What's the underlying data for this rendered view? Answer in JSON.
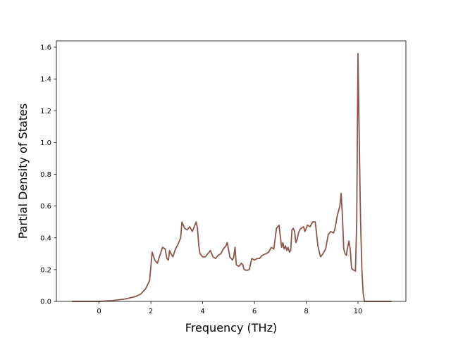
{
  "chart_data": {
    "type": "line",
    "title": "",
    "xlabel": "Frequency (THz)",
    "ylabel": "Partial Density of States",
    "xlim": [
      -1.65,
      11.85
    ],
    "ylim": [
      0,
      1.64
    ],
    "xticks": [
      0,
      2,
      4,
      6,
      8,
      10
    ],
    "yticks": [
      0.0,
      0.2,
      0.4,
      0.6,
      0.8,
      1.0,
      1.2,
      1.4,
      1.6
    ],
    "xtick_labels": [
      "0",
      "2",
      "4",
      "6",
      "8",
      "10"
    ],
    "ytick_labels": [
      "0.0",
      "0.2",
      "0.4",
      "0.6",
      "0.8",
      "1.0",
      "1.2",
      "1.4",
      "1.6"
    ],
    "grid": false,
    "legend": "none",
    "series": [
      {
        "color": "#8c564b",
        "x": [
          -1.05,
          0.0,
          0.5,
          1.0,
          1.4,
          1.6,
          1.8,
          1.95,
          2.05,
          2.15,
          2.25,
          2.35,
          2.45,
          2.55,
          2.62,
          2.68,
          2.72,
          2.78,
          2.85,
          2.95,
          3.05,
          3.15,
          3.2,
          3.3,
          3.4,
          3.5,
          3.6,
          3.7,
          3.75,
          3.8,
          3.85,
          3.9,
          3.95,
          4.0,
          4.1,
          4.2,
          4.3,
          4.4,
          4.5,
          4.6,
          4.7,
          4.8,
          4.9,
          4.95,
          5.05,
          5.15,
          5.2,
          5.25,
          5.3,
          5.4,
          5.5,
          5.55,
          5.6,
          5.7,
          5.8,
          5.9,
          6.0,
          6.1,
          6.2,
          6.3,
          6.45,
          6.55,
          6.65,
          6.75,
          6.85,
          6.95,
          7.05,
          7.1,
          7.15,
          7.2,
          7.25,
          7.3,
          7.35,
          7.4,
          7.45,
          7.5,
          7.55,
          7.6,
          7.65,
          7.7,
          7.75,
          7.8,
          7.9,
          7.95,
          8.05,
          8.15,
          8.25,
          8.35,
          8.45,
          8.55,
          8.65,
          8.75,
          8.85,
          8.95,
          9.05,
          9.1,
          9.2,
          9.3,
          9.35,
          9.4,
          9.45,
          9.5,
          9.55,
          9.6,
          9.65,
          9.7,
          9.75,
          9.8,
          9.9,
          9.95,
          10.0,
          10.05,
          10.1,
          10.15,
          10.2,
          10.25,
          10.3,
          11.3
        ],
        "y": [
          0.0,
          0.0,
          0.005,
          0.015,
          0.03,
          0.045,
          0.08,
          0.13,
          0.31,
          0.26,
          0.24,
          0.29,
          0.34,
          0.33,
          0.27,
          0.26,
          0.32,
          0.3,
          0.28,
          0.33,
          0.36,
          0.4,
          0.5,
          0.46,
          0.45,
          0.47,
          0.44,
          0.48,
          0.5,
          0.46,
          0.35,
          0.3,
          0.29,
          0.28,
          0.28,
          0.3,
          0.32,
          0.28,
          0.27,
          0.29,
          0.3,
          0.33,
          0.35,
          0.37,
          0.28,
          0.26,
          0.28,
          0.34,
          0.23,
          0.22,
          0.24,
          0.23,
          0.2,
          0.195,
          0.2,
          0.27,
          0.26,
          0.27,
          0.27,
          0.29,
          0.3,
          0.31,
          0.34,
          0.33,
          0.46,
          0.48,
          0.34,
          0.37,
          0.33,
          0.35,
          0.32,
          0.34,
          0.31,
          0.32,
          0.45,
          0.46,
          0.44,
          0.37,
          0.39,
          0.43,
          0.45,
          0.46,
          0.47,
          0.44,
          0.48,
          0.47,
          0.5,
          0.5,
          0.35,
          0.28,
          0.3,
          0.33,
          0.42,
          0.44,
          0.43,
          0.45,
          0.54,
          0.6,
          0.68,
          0.53,
          0.33,
          0.3,
          0.29,
          0.34,
          0.38,
          0.33,
          0.21,
          0.2,
          0.19,
          0.5,
          1.56,
          1.0,
          0.5,
          0.2,
          0.05,
          0.0,
          0.0,
          0.0
        ]
      }
    ]
  }
}
